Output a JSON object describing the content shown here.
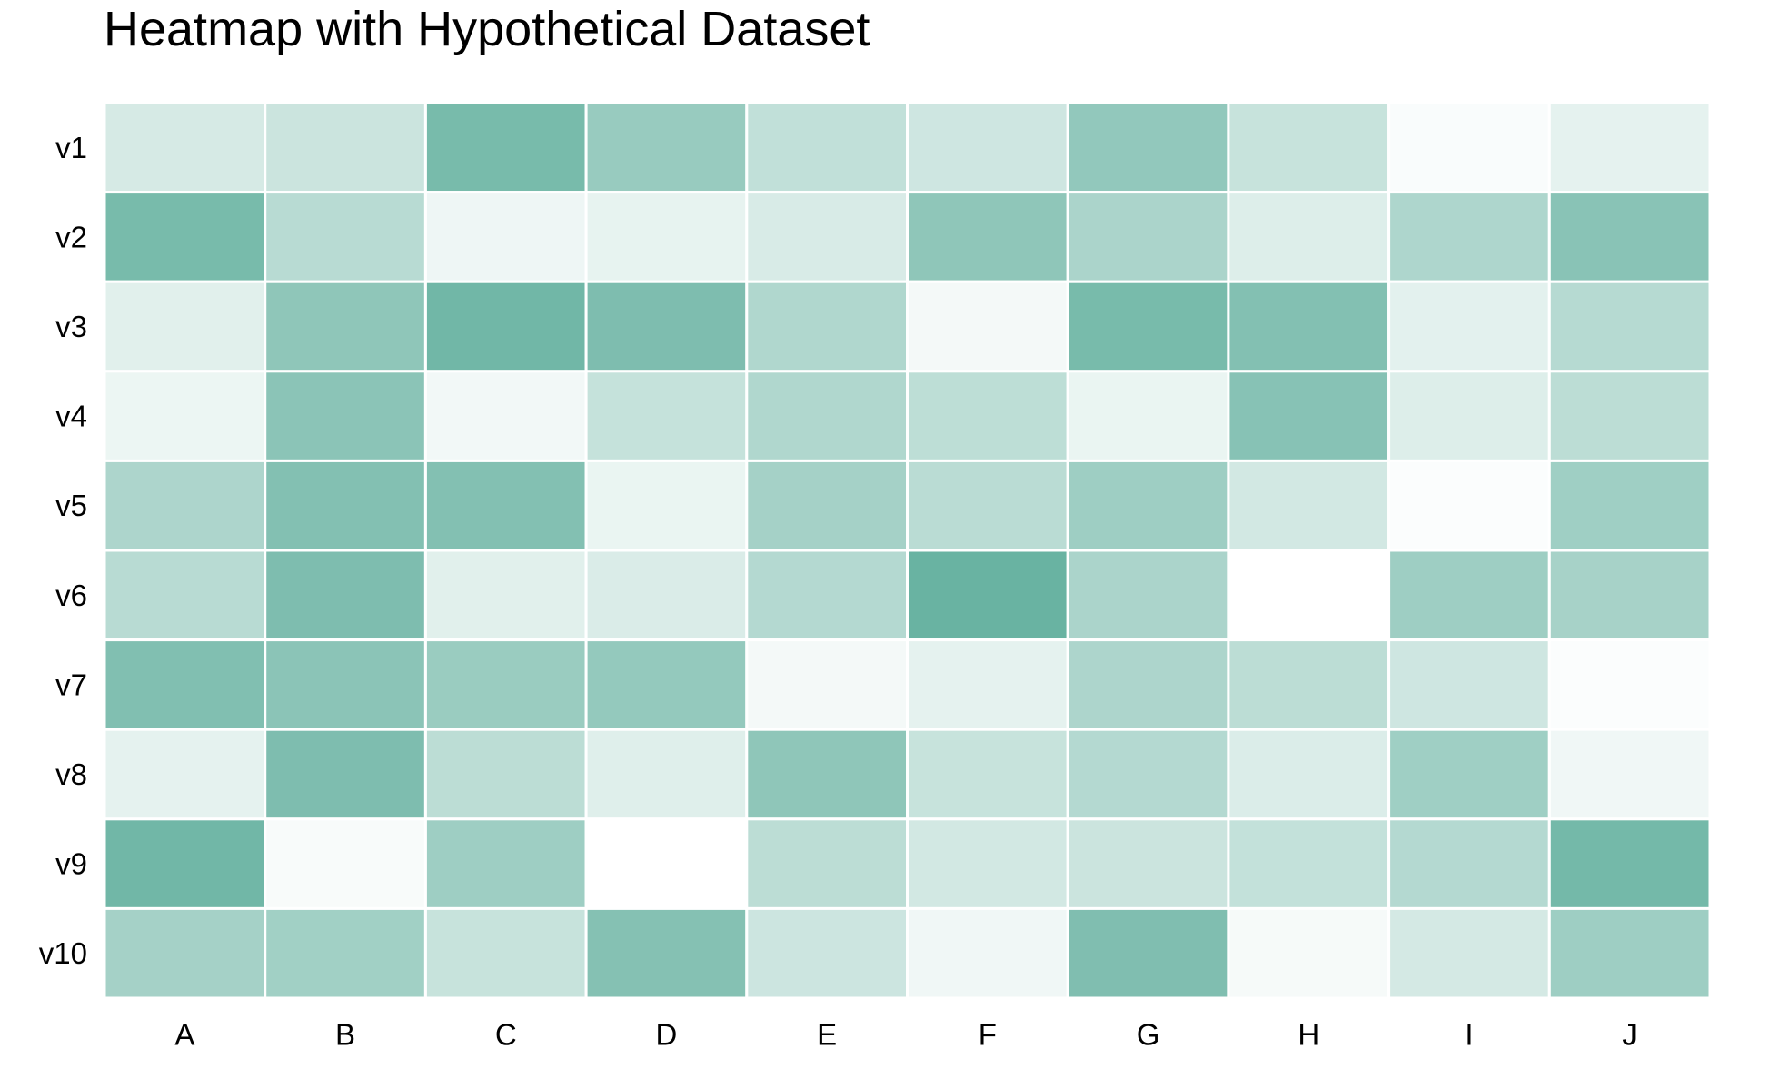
{
  "chart_data": {
    "type": "heatmap",
    "title": "Heatmap with Hypothetical Dataset",
    "x_categories": [
      "A",
      "B",
      "C",
      "D",
      "E",
      "F",
      "G",
      "H",
      "I",
      "J"
    ],
    "y_categories": [
      "v1",
      "v2",
      "v3",
      "v4",
      "v5",
      "v6",
      "v7",
      "v8",
      "v9",
      "v10"
    ],
    "values": [
      [
        22,
        28,
        72,
        55,
        33,
        26,
        58,
        30,
        3,
        14
      ],
      [
        72,
        38,
        9,
        13,
        21,
        60,
        45,
        18,
        43,
        63
      ],
      [
        16,
        60,
        76,
        69,
        42,
        6,
        72,
        66,
        15,
        39
      ],
      [
        10,
        62,
        7,
        31,
        42,
        35,
        11,
        64,
        18,
        36
      ],
      [
        44,
        66,
        66,
        11,
        48,
        37,
        52,
        24,
        2,
        51
      ],
      [
        38,
        69,
        16,
        20,
        40,
        80,
        45,
        0,
        52,
        47
      ],
      [
        67,
        62,
        54,
        57,
        6,
        14,
        44,
        36,
        26,
        2
      ],
      [
        14,
        69,
        36,
        17,
        60,
        30,
        40,
        19,
        51,
        8
      ],
      [
        76,
        4,
        52,
        0,
        36,
        24,
        28,
        32,
        40,
        74
      ],
      [
        48,
        50,
        30,
        65,
        27,
        8,
        68,
        5,
        23,
        52
      ]
    ],
    "value_range": [
      0,
      80
    ],
    "colors": {
      "low": "#ffffff",
      "high": "#69b3a2",
      "cell_border": "#ffffff"
    },
    "legend": "none",
    "grid": false
  }
}
